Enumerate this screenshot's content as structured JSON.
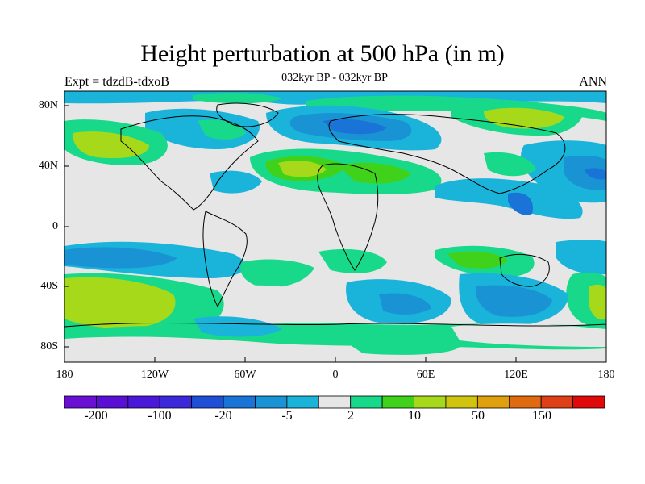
{
  "title": "Height perturbation at 500 hPa (in m)",
  "subtitle": "032kyr BP - 032kyr BP",
  "left_label": "Expt = tdzdB-tdxoB",
  "right_label": "ANN",
  "lat_labels": [
    "80N",
    "40N",
    "0",
    "40S",
    "80S"
  ],
  "lon_labels": [
    "180",
    "120W",
    "60W",
    "0",
    "60E",
    "120E",
    "180"
  ],
  "colorbar": {
    "colors": [
      "#6a0fd4",
      "#5a0fd6",
      "#4a18d8",
      "#3a28da",
      "#1f4fd6",
      "#1a74d8",
      "#1a93d4",
      "#1ab4da",
      "#e6e6e6",
      "#18d98a",
      "#40d21a",
      "#a6d91a",
      "#d1c40e",
      "#e0a00e",
      "#e06a10",
      "#e04018",
      "#e00a0a"
    ],
    "labels": [
      "-200",
      "-100",
      "-20",
      "-5",
      "2",
      "10",
      "50",
      "150"
    ]
  }
}
